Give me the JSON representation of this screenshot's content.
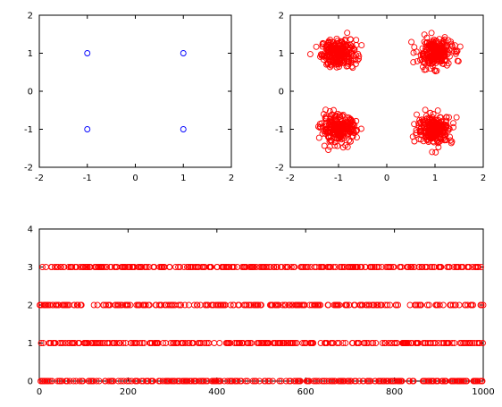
{
  "chart_data": [
    {
      "type": "scatter",
      "xlim": [
        -2,
        2
      ],
      "ylim": [
        -2,
        2
      ],
      "xticks": [
        "-2",
        "-1",
        "0",
        "1",
        "2"
      ],
      "yticks": [
        "-2",
        "-1",
        "0",
        "1",
        "2"
      ],
      "marker": "circle",
      "color": "#0000ff",
      "points": [
        [
          -1,
          1
        ],
        [
          1,
          1
        ],
        [
          -1,
          -1
        ],
        [
          1,
          -1
        ]
      ]
    },
    {
      "type": "scatter",
      "xlim": [
        -2,
        2
      ],
      "ylim": [
        -2,
        2
      ],
      "xticks": [
        "-2",
        "-1",
        "0",
        "1",
        "2"
      ],
      "yticks": [
        "-2",
        "-1",
        "0",
        "1",
        "2"
      ],
      "marker": "circle",
      "color": "#ff0000",
      "clusters": [
        {
          "center": [
            -1,
            1
          ],
          "spread": 0.18,
          "count": 250
        },
        {
          "center": [
            1,
            1
          ],
          "spread": 0.18,
          "count": 250
        },
        {
          "center": [
            -1,
            -1
          ],
          "spread": 0.18,
          "count": 250
        },
        {
          "center": [
            1,
            -1
          ],
          "spread": 0.18,
          "count": 250
        }
      ]
    },
    {
      "type": "scatter",
      "xlim": [
        0,
        1000
      ],
      "ylim": [
        0,
        4
      ],
      "xticks": [
        "0",
        "200",
        "400",
        "600",
        "800",
        "1000"
      ],
      "yticks": [
        "0",
        "1",
        "2",
        "3",
        "4"
      ],
      "marker": "circle",
      "color": "#ff0000",
      "levels": [
        0,
        1,
        2,
        3
      ],
      "n_points": 1000
    }
  ]
}
